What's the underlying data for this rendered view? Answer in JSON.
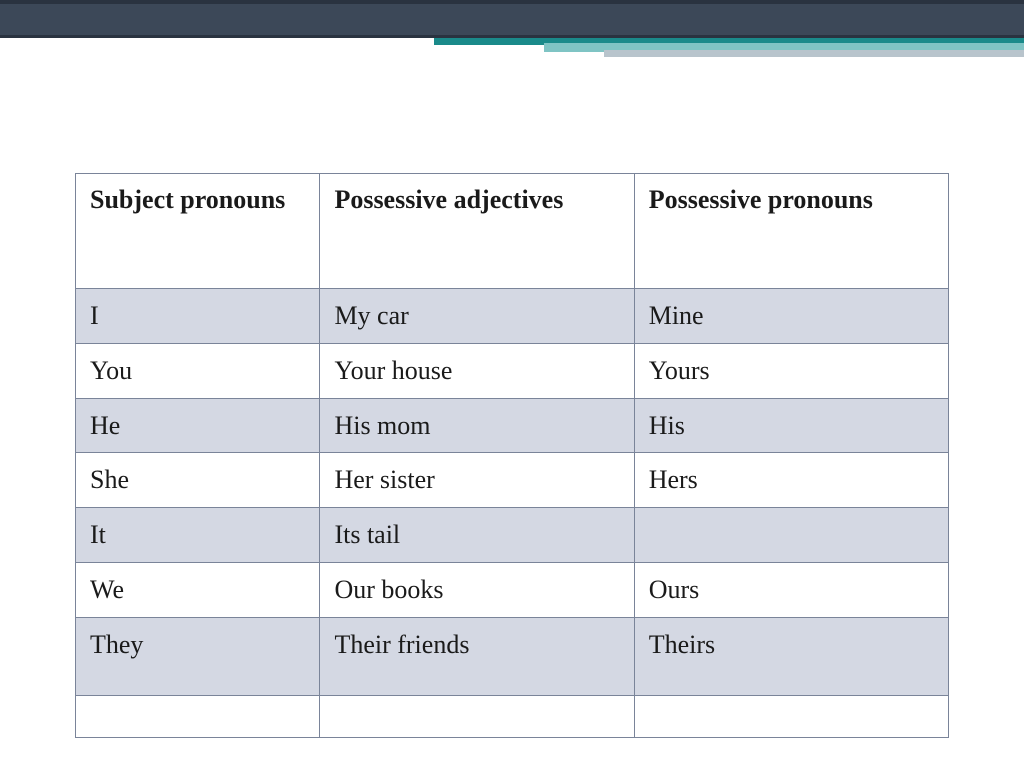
{
  "header": {
    "bar_color": "#3c4858",
    "accent_colors": [
      "#1a8a8a",
      "#7fc4c4",
      "#b8c4cc"
    ]
  },
  "table": {
    "type": "table",
    "border_color": "#7a8499",
    "shaded_bg": "#d4d8e3",
    "white_bg": "#ffffff",
    "header_fontsize": 26,
    "cell_fontsize": 26,
    "font_family": "Georgia",
    "columns": [
      {
        "label": "Subject pronouns",
        "width": "28%"
      },
      {
        "label": "Possessive adjectives",
        "width": "36%"
      },
      {
        "label": "Possessive pronouns",
        "width": "36%"
      }
    ],
    "rows": [
      {
        "cells": [
          "I",
          "My car",
          "Mine"
        ],
        "shaded": true
      },
      {
        "cells": [
          "You",
          "Your house",
          "Yours"
        ],
        "shaded": false
      },
      {
        "cells": [
          "He",
          "His mom",
          "His"
        ],
        "shaded": true
      },
      {
        "cells": [
          "She",
          "Her sister",
          "Hers"
        ],
        "shaded": false
      },
      {
        "cells": [
          "It",
          "Its tail",
          ""
        ],
        "shaded": true
      },
      {
        "cells": [
          "We",
          "Our books",
          "Ours"
        ],
        "shaded": false
      },
      {
        "cells": [
          "They",
          "Their friends",
          "Theirs"
        ],
        "shaded": true,
        "tall": true
      },
      {
        "cells": [
          "",
          "",
          ""
        ],
        "shaded": false,
        "empty": true
      }
    ]
  }
}
